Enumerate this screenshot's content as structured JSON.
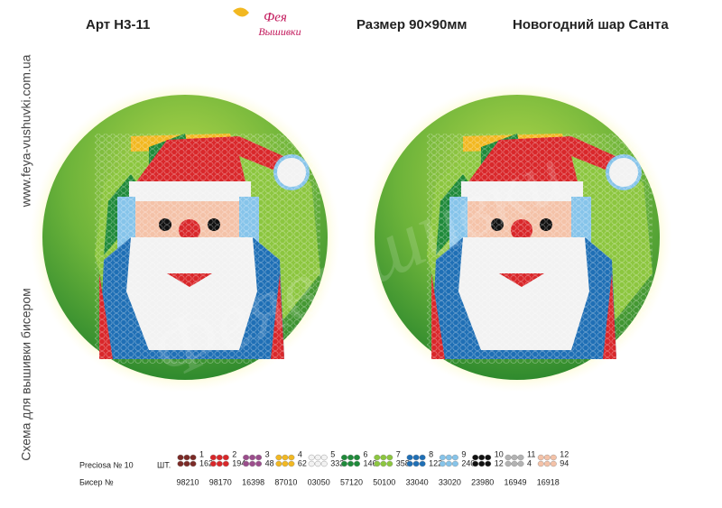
{
  "header": {
    "article": "Арт Н3-11",
    "logo": [
      "Фея",
      "Вышивки"
    ],
    "size": "Размер 90×90мм",
    "title": "Новогодний шар Санта"
  },
  "side": {
    "url": "www.feya-vushuvki.com.ua",
    "caption": "Схема для вышивки бисером"
  },
  "watermark": "Феявышивки",
  "legend": {
    "brand": "Preciosa № 10",
    "unit": "ШТ.",
    "bead_label": "Бисер №",
    "items": [
      {
        "number": 1,
        "color": "#7b2a26",
        "count": 162,
        "code": "98210"
      },
      {
        "number": 2,
        "color": "#d9272a",
        "count": 194,
        "code": "98170"
      },
      {
        "number": 3,
        "color": "#9b4d8c",
        "count": 48,
        "code": "16398"
      },
      {
        "number": 4,
        "color": "#f2b821",
        "count": 62,
        "code": "87010"
      },
      {
        "number": 5,
        "color": "#f2f2f2",
        "count": 332,
        "code": "03050"
      },
      {
        "number": 6,
        "color": "#1f8a3a",
        "count": 146,
        "code": "57120"
      },
      {
        "number": 7,
        "color": "#8cc63f",
        "count": 358,
        "code": "50100"
      },
      {
        "number": 8,
        "color": "#1f6fb5",
        "count": 122,
        "code": "33040"
      },
      {
        "number": 9,
        "color": "#86c4ea",
        "count": 240,
        "code": "33020"
      },
      {
        "number": 10,
        "color": "#111111",
        "count": 12,
        "code": "23980"
      },
      {
        "number": 11,
        "color": "#b3b3b3",
        "count": 4,
        "code": "16949"
      },
      {
        "number": 12,
        "color": "#f4c2a8",
        "count": 94,
        "code": "16918"
      }
    ]
  }
}
